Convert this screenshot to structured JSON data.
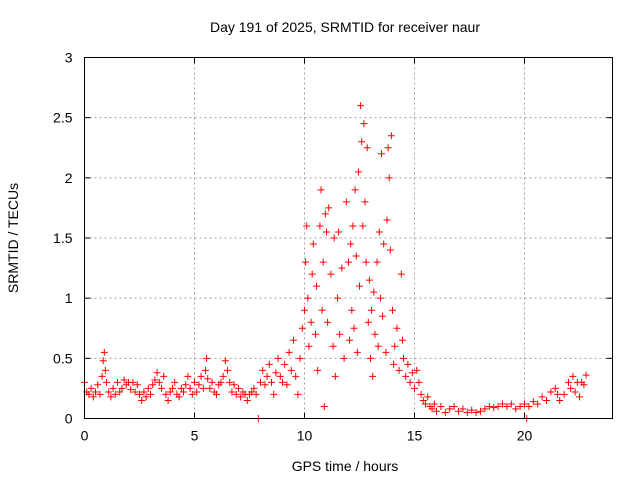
{
  "chart_data": {
    "type": "scatter",
    "title": "Day 191 of 2025, SRMTID for receiver naur",
    "xlabel": "GPS time / hours",
    "ylabel": "SRMTID / TECUs",
    "xlim": [
      0,
      24
    ],
    "ylim": [
      0,
      3
    ],
    "x_ticks": [
      0,
      5,
      10,
      15,
      20
    ],
    "x_tick_labels": [
      "0",
      "5",
      "10",
      "15",
      "20"
    ],
    "y_ticks": [
      0,
      0.5,
      1,
      1.5,
      2,
      2.5,
      3
    ],
    "y_tick_labels": [
      "0",
      "0.5",
      "1",
      "1.5",
      "2",
      "2.5",
      "3"
    ],
    "grid": true,
    "marker": "+",
    "color": "#ff0000",
    "series": [
      {
        "name": "naur",
        "points": [
          [
            0.0,
            0.3
          ],
          [
            0.1,
            0.22
          ],
          [
            0.2,
            0.2
          ],
          [
            0.3,
            0.25
          ],
          [
            0.4,
            0.18
          ],
          [
            0.5,
            0.22
          ],
          [
            0.6,
            0.28
          ],
          [
            0.7,
            0.2
          ],
          [
            0.8,
            0.35
          ],
          [
            0.85,
            0.48
          ],
          [
            0.9,
            0.55
          ],
          [
            0.95,
            0.4
          ],
          [
            1.0,
            0.3
          ],
          [
            1.1,
            0.22
          ],
          [
            1.2,
            0.18
          ],
          [
            1.3,
            0.25
          ],
          [
            1.4,
            0.2
          ],
          [
            1.5,
            0.3
          ],
          [
            1.6,
            0.22
          ],
          [
            1.7,
            0.25
          ],
          [
            1.8,
            0.32
          ],
          [
            1.9,
            0.28
          ],
          [
            2.0,
            0.3
          ],
          [
            2.1,
            0.24
          ],
          [
            2.2,
            0.3
          ],
          [
            2.3,
            0.22
          ],
          [
            2.4,
            0.28
          ],
          [
            2.5,
            0.2
          ],
          [
            2.6,
            0.15
          ],
          [
            2.7,
            0.22
          ],
          [
            2.8,
            0.18
          ],
          [
            2.9,
            0.25
          ],
          [
            3.0,
            0.2
          ],
          [
            3.1,
            0.28
          ],
          [
            3.2,
            0.32
          ],
          [
            3.3,
            0.38
          ],
          [
            3.4,
            0.3
          ],
          [
            3.5,
            0.25
          ],
          [
            3.6,
            0.35
          ],
          [
            3.7,
            0.2
          ],
          [
            3.8,
            0.15
          ],
          [
            3.9,
            0.22
          ],
          [
            4.0,
            0.25
          ],
          [
            4.1,
            0.3
          ],
          [
            4.2,
            0.2
          ],
          [
            4.3,
            0.18
          ],
          [
            4.4,
            0.25
          ],
          [
            4.5,
            0.22
          ],
          [
            4.6,
            0.28
          ],
          [
            4.7,
            0.35
          ],
          [
            4.8,
            0.25
          ],
          [
            4.9,
            0.2
          ],
          [
            5.0,
            0.3
          ],
          [
            5.1,
            0.22
          ],
          [
            5.2,
            0.28
          ],
          [
            5.3,
            0.35
          ],
          [
            5.4,
            0.25
          ],
          [
            5.5,
            0.4
          ],
          [
            5.55,
            0.5
          ],
          [
            5.6,
            0.33
          ],
          [
            5.7,
            0.25
          ],
          [
            5.8,
            0.3
          ],
          [
            5.9,
            0.22
          ],
          [
            6.0,
            0.2
          ],
          [
            6.1,
            0.28
          ],
          [
            6.2,
            0.3
          ],
          [
            6.3,
            0.35
          ],
          [
            6.4,
            0.48
          ],
          [
            6.5,
            0.4
          ],
          [
            6.6,
            0.3
          ],
          [
            6.7,
            0.22
          ],
          [
            6.8,
            0.28
          ],
          [
            6.9,
            0.2
          ],
          [
            7.0,
            0.25
          ],
          [
            7.1,
            0.18
          ],
          [
            7.2,
            0.22
          ],
          [
            7.3,
            0.2
          ],
          [
            7.4,
            0.15
          ],
          [
            7.5,
            0.2
          ],
          [
            7.6,
            0.22
          ],
          [
            7.7,
            0.25
          ],
          [
            7.8,
            0.2
          ],
          [
            7.9,
            0.0
          ],
          [
            8.0,
            0.3
          ],
          [
            8.1,
            0.4
          ],
          [
            8.2,
            0.28
          ],
          [
            8.3,
            0.35
          ],
          [
            8.4,
            0.45
          ],
          [
            8.5,
            0.3
          ],
          [
            8.6,
            0.2
          ],
          [
            8.7,
            0.38
          ],
          [
            8.8,
            0.5
          ],
          [
            8.9,
            0.35
          ],
          [
            9.0,
            0.3
          ],
          [
            9.1,
            0.45
          ],
          [
            9.2,
            0.28
          ],
          [
            9.3,
            0.55
          ],
          [
            9.4,
            0.4
          ],
          [
            9.5,
            0.65
          ],
          [
            9.6,
            0.35
          ],
          [
            9.7,
            0.2
          ],
          [
            9.8,
            0.5
          ],
          [
            9.9,
            0.75
          ],
          [
            10.0,
            0.9
          ],
          [
            10.05,
            1.3
          ],
          [
            10.1,
            1.6
          ],
          [
            10.15,
            1.0
          ],
          [
            10.2,
            0.6
          ],
          [
            10.3,
            0.8
          ],
          [
            10.35,
            1.2
          ],
          [
            10.4,
            1.45
          ],
          [
            10.5,
            0.7
          ],
          [
            10.55,
            1.1
          ],
          [
            10.6,
            0.4
          ],
          [
            10.7,
            1.6
          ],
          [
            10.75,
            1.9
          ],
          [
            10.8,
            0.9
          ],
          [
            10.85,
            1.3
          ],
          [
            10.9,
            0.1
          ],
          [
            10.95,
            1.7
          ],
          [
            11.0,
            1.55
          ],
          [
            11.05,
            0.8
          ],
          [
            11.1,
            1.75
          ],
          [
            11.2,
            1.2
          ],
          [
            11.3,
            0.6
          ],
          [
            11.35,
            1.5
          ],
          [
            11.4,
            0.35
          ],
          [
            11.5,
            1.0
          ],
          [
            11.55,
            1.55
          ],
          [
            11.6,
            0.7
          ],
          [
            11.7,
            1.25
          ],
          [
            11.8,
            0.5
          ],
          [
            11.9,
            1.8
          ],
          [
            12.0,
            1.3
          ],
          [
            12.05,
            0.65
          ],
          [
            12.1,
            1.45
          ],
          [
            12.15,
            0.9
          ],
          [
            12.2,
            1.6
          ],
          [
            12.25,
            0.75
          ],
          [
            12.3,
            1.9
          ],
          [
            12.35,
            1.35
          ],
          [
            12.4,
            0.55
          ],
          [
            12.45,
            2.05
          ],
          [
            12.5,
            1.1
          ],
          [
            12.55,
            2.6
          ],
          [
            12.6,
            2.3
          ],
          [
            12.65,
            1.6
          ],
          [
            12.7,
            2.45
          ],
          [
            12.75,
            1.8
          ],
          [
            12.8,
            1.3
          ],
          [
            12.85,
            2.25
          ],
          [
            12.9,
            0.8
          ],
          [
            12.95,
            1.15
          ],
          [
            13.0,
            0.5
          ],
          [
            13.05,
            0.9
          ],
          [
            13.1,
            0.35
          ],
          [
            13.15,
            1.05
          ],
          [
            13.2,
            0.7
          ],
          [
            13.3,
            1.3
          ],
          [
            13.35,
            0.6
          ],
          [
            13.4,
            1.55
          ],
          [
            13.45,
            1.0
          ],
          [
            13.5,
            2.2
          ],
          [
            13.55,
            0.85
          ],
          [
            13.6,
            1.45
          ],
          [
            13.7,
            0.55
          ],
          [
            13.75,
            1.65
          ],
          [
            13.8,
            2.25
          ],
          [
            13.85,
            2.0
          ],
          [
            13.9,
            1.4
          ],
          [
            13.95,
            2.35
          ],
          [
            14.0,
            0.9
          ],
          [
            14.05,
            0.45
          ],
          [
            14.1,
            0.6
          ],
          [
            14.2,
            0.75
          ],
          [
            14.3,
            0.4
          ],
          [
            14.4,
            1.2
          ],
          [
            14.45,
            0.65
          ],
          [
            14.5,
            0.5
          ],
          [
            14.6,
            0.35
          ],
          [
            14.7,
            0.45
          ],
          [
            14.8,
            0.3
          ],
          [
            14.9,
            0.38
          ],
          [
            15.0,
            0.25
          ],
          [
            15.1,
            0.4
          ],
          [
            15.2,
            0.3
          ],
          [
            15.3,
            0.2
          ],
          [
            15.4,
            0.15
          ],
          [
            15.5,
            0.12
          ],
          [
            15.6,
            0.18
          ],
          [
            15.7,
            0.1
          ],
          [
            15.8,
            0.08
          ],
          [
            15.9,
            0.12
          ],
          [
            16.0,
            0.06
          ],
          [
            16.2,
            0.1
          ],
          [
            16.4,
            0.05
          ],
          [
            16.6,
            0.08
          ],
          [
            16.8,
            0.1
          ],
          [
            17.0,
            0.06
          ],
          [
            17.2,
            0.08
          ],
          [
            17.4,
            0.05
          ],
          [
            17.6,
            0.07
          ],
          [
            17.8,
            0.05
          ],
          [
            18.0,
            0.06
          ],
          [
            18.2,
            0.08
          ],
          [
            18.4,
            0.1
          ],
          [
            18.6,
            0.09
          ],
          [
            18.8,
            0.1
          ],
          [
            19.0,
            0.12
          ],
          [
            19.2,
            0.1
          ],
          [
            19.4,
            0.12
          ],
          [
            19.6,
            0.08
          ],
          [
            19.8,
            0.1
          ],
          [
            20.0,
            0.12
          ],
          [
            20.1,
            0.0
          ],
          [
            20.2,
            0.1
          ],
          [
            20.4,
            0.14
          ],
          [
            20.6,
            0.12
          ],
          [
            20.8,
            0.18
          ],
          [
            21.0,
            0.15
          ],
          [
            21.2,
            0.22
          ],
          [
            21.4,
            0.25
          ],
          [
            21.5,
            0.2
          ],
          [
            21.6,
            0.15
          ],
          [
            21.8,
            0.2
          ],
          [
            22.0,
            0.3
          ],
          [
            22.1,
            0.25
          ],
          [
            22.2,
            0.35
          ],
          [
            22.3,
            0.22
          ],
          [
            22.4,
            0.3
          ],
          [
            22.5,
            0.18
          ],
          [
            22.6,
            0.3
          ],
          [
            22.7,
            0.28
          ],
          [
            22.8,
            0.36
          ]
        ]
      }
    ]
  }
}
